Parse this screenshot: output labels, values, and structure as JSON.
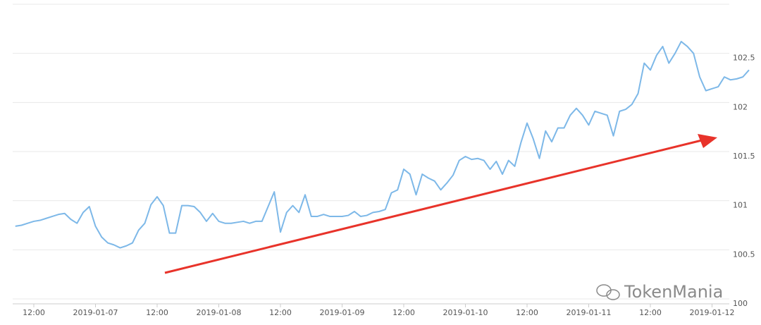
{
  "chart_data": {
    "type": "line",
    "annotation": "TokenMania",
    "categories": [
      null,
      null,
      null,
      "12:00",
      null,
      null,
      null,
      null,
      null,
      null,
      null,
      null,
      null,
      "2019-01-07",
      null,
      null,
      null,
      null,
      null,
      null,
      null,
      null,
      null,
      "12:00",
      null,
      null,
      null,
      null,
      null,
      null,
      null,
      null,
      null,
      "2019-01-08",
      null,
      null,
      null,
      null,
      null,
      null,
      null,
      null,
      null,
      "12:00",
      null,
      null,
      null,
      null,
      null,
      null,
      null,
      null,
      null,
      "2019-01-09",
      null,
      null,
      null,
      null,
      null,
      null,
      null,
      null,
      null,
      "12:00",
      null,
      null,
      null,
      null,
      null,
      null,
      null,
      null,
      null,
      "2019-01-10",
      null,
      null,
      null,
      null,
      null,
      null,
      null,
      null,
      null,
      "12:00",
      null,
      null,
      null,
      null,
      null,
      null,
      null,
      null,
      null,
      "2019-01-11",
      null,
      null,
      null,
      null,
      null,
      null,
      null,
      null,
      null,
      "12:00",
      null,
      null,
      null,
      null,
      null,
      null,
      null,
      null,
      null,
      "2019-01-12",
      null,
      null,
      null,
      null,
      null,
      null
    ],
    "series": [
      {
        "color": "#7db8e8",
        "values": [
          100.74,
          100.75,
          100.77,
          100.79,
          100.8,
          100.82,
          100.84,
          100.86,
          100.87,
          100.81,
          100.77,
          100.88,
          100.94,
          100.74,
          100.63,
          100.57,
          100.55,
          100.52,
          100.54,
          100.57,
          100.7,
          100.77,
          100.96,
          101.04,
          100.95,
          100.67,
          100.67,
          100.95,
          100.95,
          100.94,
          100.88,
          100.79,
          100.87,
          100.79,
          100.77,
          100.77,
          100.78,
          100.79,
          100.77,
          100.79,
          100.79,
          100.94,
          101.09,
          100.68,
          100.88,
          100.95,
          100.88,
          101.06,
          100.84,
          100.84,
          100.86,
          100.84,
          100.84,
          100.84,
          100.85,
          100.89,
          100.84,
          100.85,
          100.88,
          100.89,
          100.91,
          101.08,
          101.11,
          101.32,
          101.27,
          101.06,
          101.27,
          101.23,
          101.2,
          101.11,
          101.18,
          101.26,
          101.41,
          101.45,
          101.42,
          101.43,
          101.41,
          101.32,
          101.4,
          101.27,
          101.41,
          101.35,
          101.59,
          101.79,
          101.63,
          101.43,
          101.71,
          101.6,
          101.74,
          101.74,
          101.87,
          101.94,
          101.87,
          101.77,
          101.91,
          101.89,
          101.87,
          101.66,
          101.91,
          101.93,
          101.98,
          102.09,
          102.4,
          102.33,
          102.48,
          102.57,
          102.4,
          102.5,
          102.62,
          102.57,
          102.5,
          102.26,
          102.12,
          102.14,
          102.16,
          102.26,
          102.23,
          102.24,
          102.26,
          102.33
        ]
      }
    ],
    "ylim": [
      100,
      103
    ],
    "yticks": [
      100,
      100.5,
      101,
      101.5,
      102,
      102.5
    ],
    "grid": true
  }
}
